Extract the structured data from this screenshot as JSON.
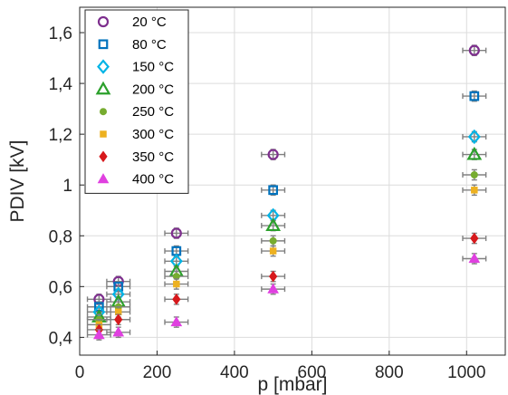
{
  "chart_data": {
    "type": "scatter",
    "title": "",
    "xlabel": "p [mbar]",
    "ylabel": "PDIV [kV]",
    "xlim": [
      0,
      1100
    ],
    "ylim": [
      0.33,
      1.7
    ],
    "xticks": [
      0,
      200,
      400,
      600,
      800,
      1000
    ],
    "yticks": [
      0.4,
      0.6,
      0.8,
      1.0,
      1.2,
      1.4,
      1.6
    ],
    "xtick_labels": [
      "0",
      "200",
      "400",
      "600",
      "800",
      "1000"
    ],
    "ytick_labels": [
      "0,4",
      "0,6",
      "0,8",
      "1",
      "1,2",
      "1,4",
      "1,6"
    ],
    "grid": true,
    "legend_position": "top-left",
    "x_error": 30,
    "series": [
      {
        "name": "20 °C",
        "marker": "circle-open",
        "color": "#7E2F8E",
        "x": [
          50,
          100,
          250,
          500,
          1020
        ],
        "y": [
          0.55,
          0.62,
          0.81,
          1.12,
          1.53
        ]
      },
      {
        "name": "80 °C",
        "marker": "square-open",
        "color": "#0072BD",
        "x": [
          50,
          100,
          250,
          500,
          1020
        ],
        "y": [
          0.52,
          0.6,
          0.74,
          0.98,
          1.35
        ]
      },
      {
        "name": "150 °C",
        "marker": "diamond-open",
        "color": "#00B4E6",
        "x": [
          50,
          100,
          250,
          500,
          1020
        ],
        "y": [
          0.5,
          0.57,
          0.7,
          0.88,
          1.19
        ]
      },
      {
        "name": "200 °C",
        "marker": "triangle-open",
        "color": "#2BA02B",
        "x": [
          50,
          100,
          250,
          500,
          1020
        ],
        "y": [
          0.48,
          0.54,
          0.66,
          0.84,
          1.12
        ]
      },
      {
        "name": "250 °C",
        "marker": "circle-filled",
        "color": "#77AC30",
        "x": [
          50,
          100,
          250,
          500,
          1020
        ],
        "y": [
          0.47,
          0.52,
          0.64,
          0.78,
          1.04
        ]
      },
      {
        "name": "300 °C",
        "marker": "square-filled",
        "color": "#EDB120",
        "x": [
          50,
          100,
          250,
          500,
          1020
        ],
        "y": [
          0.45,
          0.5,
          0.61,
          0.74,
          0.98
        ]
      },
      {
        "name": "350 °C",
        "marker": "diamond-filled",
        "color": "#D7191C",
        "x": [
          50,
          100,
          250,
          500,
          1020
        ],
        "y": [
          0.43,
          0.47,
          0.55,
          0.64,
          0.79
        ]
      },
      {
        "name": "400 °C",
        "marker": "triangle-filled",
        "color": "#E040E0",
        "x": [
          50,
          100,
          250,
          500,
          1020
        ],
        "y": [
          0.41,
          0.42,
          0.46,
          0.59,
          0.71
        ]
      }
    ]
  }
}
